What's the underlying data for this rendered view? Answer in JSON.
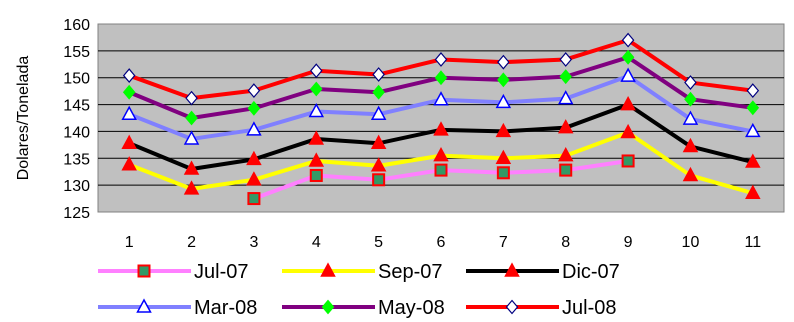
{
  "chart_data": {
    "type": "line",
    "title": "",
    "xlabel": "",
    "ylabel": "Dolares/Tonelada",
    "x": [
      "1",
      "2",
      "3",
      "4",
      "5",
      "6",
      "7",
      "8",
      "9",
      "10",
      "11"
    ],
    "ylim": [
      125,
      160
    ],
    "yticks": [
      125,
      130,
      135,
      140,
      145,
      150,
      155,
      160
    ],
    "grid": "horizontal",
    "plot_background": "#c0c0c0",
    "legend_position": "bottom",
    "series": [
      {
        "name": "Jul-07",
        "color": "#ff80ff",
        "marker": "square",
        "marker_fill": "#339966",
        "marker_stroke": "#ff0000",
        "values": [
          null,
          null,
          127.5,
          131.8,
          131.0,
          132.8,
          132.3,
          132.8,
          134.5,
          null,
          null
        ]
      },
      {
        "name": "Sep-07",
        "color": "#ffff00",
        "marker": "triangle",
        "marker_fill": "#ff0000",
        "marker_stroke": "#ff0000",
        "values": [
          133.8,
          129.3,
          131.0,
          134.5,
          133.6,
          135.5,
          135.0,
          135.5,
          139.8,
          131.8,
          128.5
        ]
      },
      {
        "name": "Dic-07",
        "color": "#000000",
        "marker": "triangle",
        "marker_fill": "#ff0000",
        "marker_stroke": "#ff0000",
        "values": [
          137.8,
          133.0,
          134.8,
          138.6,
          137.8,
          140.3,
          140.0,
          140.7,
          145.0,
          137.2,
          134.3
        ]
      },
      {
        "name": "Mar-08",
        "color": "#8080ff",
        "marker": "triangle",
        "marker_fill": "#ffffff",
        "marker_stroke": "#0000ff",
        "values": [
          143.2,
          138.6,
          140.3,
          143.7,
          143.2,
          145.9,
          145.4,
          146.1,
          150.3,
          142.3,
          140.0
        ]
      },
      {
        "name": "May-08",
        "color": "#800080",
        "marker": "diamond",
        "marker_fill": "#00ff00",
        "marker_stroke": "#00ff00",
        "values": [
          147.3,
          142.5,
          144.3,
          147.9,
          147.3,
          150.0,
          149.6,
          150.2,
          153.8,
          146.0,
          144.4
        ]
      },
      {
        "name": "Jul-08",
        "color": "#ff0000",
        "marker": "diamond",
        "marker_fill": "#ffffff",
        "marker_stroke": "#000080",
        "values": [
          150.4,
          146.2,
          147.6,
          151.3,
          150.6,
          153.4,
          152.9,
          153.4,
          157.0,
          149.1,
          147.6
        ]
      }
    ]
  }
}
